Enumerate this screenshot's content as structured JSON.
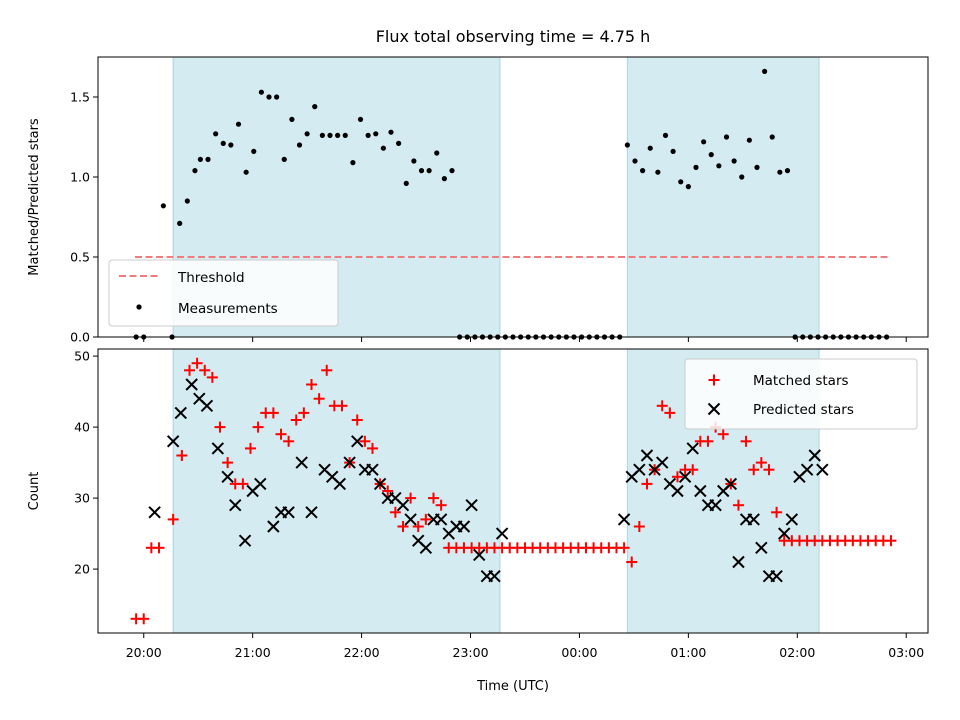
{
  "chart_data": {
    "title": "Flux total observing time = 4.75 h",
    "xlabel": "Time (UTC)",
    "x_unit": "hours since 20:00 UTC (axis ticks show clock time)",
    "xlim": [
      -0.42,
      7.2
    ],
    "x_ticks": [
      0,
      1,
      2,
      3,
      4,
      5,
      6,
      7
    ],
    "x_tick_labels": [
      "20:00",
      "21:00",
      "22:00",
      "23:00",
      "00:00",
      "01:00",
      "02:00",
      "03:00"
    ],
    "shaded_intervals": [
      [
        0.27,
        3.27
      ],
      [
        4.44,
        6.2
      ]
    ],
    "shade_color": "#d4ebf1",
    "panels": [
      {
        "type": "scatter",
        "ylabel": "Matched/Predicted stars",
        "ylim": [
          0,
          1.75
        ],
        "y_ticks": [
          0.0,
          0.5,
          1.0,
          1.5
        ],
        "y_tick_labels": [
          "0.0",
          "0.5",
          "1.0",
          "1.5"
        ],
        "legend_position": "lower-left",
        "threshold": {
          "name": "Threshold",
          "value": 0.5,
          "x_range": [
            -0.08,
            6.83
          ],
          "color": "#f07d7d"
        },
        "series": [
          {
            "name": "Measurements",
            "marker": "dot",
            "color": "#000000",
            "x": [
              -0.07,
              0.0,
              0.18,
              0.26,
              0.33,
              0.4,
              0.47,
              0.52,
              0.59,
              0.66,
              0.73,
              0.8,
              0.87,
              0.94,
              1.01,
              1.08,
              1.15,
              1.22,
              1.29,
              1.36,
              1.43,
              1.5,
              1.57,
              1.64,
              1.71,
              1.78,
              1.85,
              1.92,
              1.99,
              2.06,
              2.13,
              2.2,
              2.27,
              2.34,
              2.41,
              2.48,
              2.55,
              2.62,
              2.69,
              2.76,
              2.83,
              2.9,
              2.97,
              3.04,
              3.11,
              3.18,
              3.25,
              3.32,
              3.39,
              3.46,
              3.53,
              3.6,
              3.67,
              3.74,
              3.81,
              3.88,
              3.95,
              4.02,
              4.09,
              4.16,
              4.23,
              4.3,
              4.37,
              4.44,
              4.51,
              4.58,
              4.65,
              4.72,
              4.79,
              4.86,
              4.93,
              5.0,
              5.07,
              5.14,
              5.21,
              5.28,
              5.35,
              5.42,
              5.49,
              5.56,
              5.63,
              5.7,
              5.77,
              5.84,
              5.91,
              5.98,
              6.05,
              6.12,
              6.19,
              6.26,
              6.33,
              6.4,
              6.47,
              6.54,
              6.61,
              6.68,
              6.75,
              6.82
            ],
            "y": [
              0.0,
              0.0,
              0.82,
              0.0,
              0.71,
              0.85,
              1.04,
              1.11,
              1.11,
              1.27,
              1.21,
              1.2,
              1.33,
              1.03,
              1.16,
              1.53,
              1.5,
              1.5,
              1.11,
              1.36,
              1.2,
              1.27,
              1.44,
              1.26,
              1.26,
              1.26,
              1.26,
              1.09,
              1.36,
              1.26,
              1.27,
              1.18,
              1.28,
              1.21,
              0.96,
              1.1,
              1.04,
              1.04,
              1.15,
              0.99,
              1.04,
              0.0,
              0.0,
              0.0,
              0.0,
              0.0,
              0.0,
              0.0,
              0.0,
              0.0,
              0.0,
              0.0,
              0.0,
              0.0,
              0.0,
              0.0,
              0.0,
              0.0,
              0.0,
              0.0,
              0.0,
              0.0,
              0.0,
              1.2,
              1.1,
              1.04,
              1.18,
              1.03,
              1.26,
              1.16,
              0.97,
              0.94,
              1.06,
              1.22,
              1.14,
              1.07,
              1.25,
              1.1,
              1.0,
              1.23,
              1.06,
              1.66,
              1.25,
              1.03,
              1.04,
              0.0,
              0.0,
              0.0,
              0.0,
              0.0,
              0.0,
              0.0,
              0.0,
              0.0,
              0.0,
              0.0,
              0.0,
              0.0
            ]
          }
        ]
      },
      {
        "type": "scatter",
        "ylabel": "Count",
        "ylim": [
          11,
          51
        ],
        "y_ticks": [
          20,
          30,
          40,
          50
        ],
        "y_tick_labels": [
          "20",
          "30",
          "40",
          "50"
        ],
        "legend_position": "upper-right",
        "series": [
          {
            "name": "Matched stars",
            "marker": "plus",
            "color": "#ff0000",
            "x": [
              -0.07,
              0.0,
              0.07,
              0.14,
              0.27,
              0.35,
              0.42,
              0.49,
              0.56,
              0.63,
              0.7,
              0.77,
              0.84,
              0.91,
              0.98,
              1.05,
              1.12,
              1.19,
              1.26,
              1.33,
              1.4,
              1.47,
              1.54,
              1.61,
              1.68,
              1.75,
              1.82,
              1.89,
              1.96,
              2.03,
              2.1,
              2.17,
              2.24,
              2.31,
              2.38,
              2.45,
              2.52,
              2.59,
              2.66,
              2.73,
              2.8,
              2.87,
              2.94,
              3.01,
              3.08,
              3.15,
              3.22,
              3.29,
              3.36,
              3.43,
              3.5,
              3.57,
              3.64,
              3.71,
              3.78,
              3.85,
              3.92,
              3.99,
              4.06,
              4.13,
              4.2,
              4.27,
              4.34,
              4.41,
              4.48,
              4.55,
              4.62,
              4.69,
              4.76,
              4.83,
              4.9,
              4.97,
              5.04,
              5.11,
              5.18,
              5.25,
              5.32,
              5.39,
              5.46,
              5.53,
              5.6,
              5.67,
              5.74,
              5.81,
              5.88,
              5.95,
              6.02,
              6.09,
              6.16,
              6.23,
              6.3,
              6.37,
              6.44,
              6.51,
              6.58,
              6.65,
              6.72,
              6.79,
              6.86
            ],
            "y": [
              13,
              13,
              23,
              23,
              27,
              36,
              48,
              49,
              48,
              47,
              40,
              35,
              32,
              32,
              37,
              40,
              42,
              42,
              39,
              38,
              41,
              42,
              46,
              44,
              48,
              43,
              43,
              35,
              41,
              38,
              37,
              32,
              31,
              28,
              26,
              30,
              26,
              27,
              30,
              29,
              23,
              23,
              23,
              23,
              23,
              23,
              23,
              23,
              23,
              23,
              23,
              23,
              23,
              23,
              23,
              23,
              23,
              23,
              23,
              23,
              23,
              23,
              23,
              23,
              21,
              26,
              32,
              34,
              43,
              42,
              33,
              34,
              34,
              38,
              38,
              40,
              39,
              32,
              29,
              38,
              34,
              35,
              34,
              28,
              24,
              24,
              24,
              24,
              24,
              24,
              24,
              24,
              24,
              24,
              24,
              24,
              24,
              24,
              24
            ]
          },
          {
            "name": "Predicted stars",
            "marker": "x",
            "color": "#000000",
            "x": [
              0.1,
              0.27,
              0.34,
              0.44,
              0.51,
              0.58,
              0.68,
              0.77,
              0.84,
              0.93,
              1.0,
              1.07,
              1.19,
              1.26,
              1.33,
              1.45,
              1.54,
              1.66,
              1.73,
              1.8,
              1.89,
              1.96,
              2.03,
              2.1,
              2.17,
              2.24,
              2.31,
              2.38,
              2.45,
              2.52,
              2.59,
              2.66,
              2.73,
              2.8,
              2.87,
              2.94,
              3.01,
              3.08,
              3.15,
              3.22,
              3.29,
              4.41,
              4.48,
              4.55,
              4.62,
              4.69,
              4.76,
              4.83,
              4.9,
              4.97,
              5.04,
              5.11,
              5.18,
              5.25,
              5.32,
              5.39,
              5.46,
              5.53,
              5.6,
              5.67,
              5.74,
              5.81,
              5.88,
              5.95,
              6.02,
              6.09,
              6.16,
              6.23
            ],
            "y": [
              28,
              38,
              42,
              46,
              44,
              43,
              37,
              33,
              29,
              24,
              31,
              32,
              26,
              28,
              28,
              35,
              28,
              34,
              33,
              32,
              35,
              38,
              34,
              34,
              32,
              30,
              30,
              29,
              27,
              24,
              23,
              27,
              27,
              25,
              26,
              26,
              29,
              22,
              19,
              19,
              25,
              27,
              33,
              34,
              36,
              34,
              35,
              32,
              31,
              33,
              37,
              31,
              29,
              29,
              31,
              32,
              21,
              27,
              27,
              23,
              19,
              19,
              25,
              27,
              33,
              34,
              36,
              34
            ]
          }
        ]
      }
    ]
  }
}
